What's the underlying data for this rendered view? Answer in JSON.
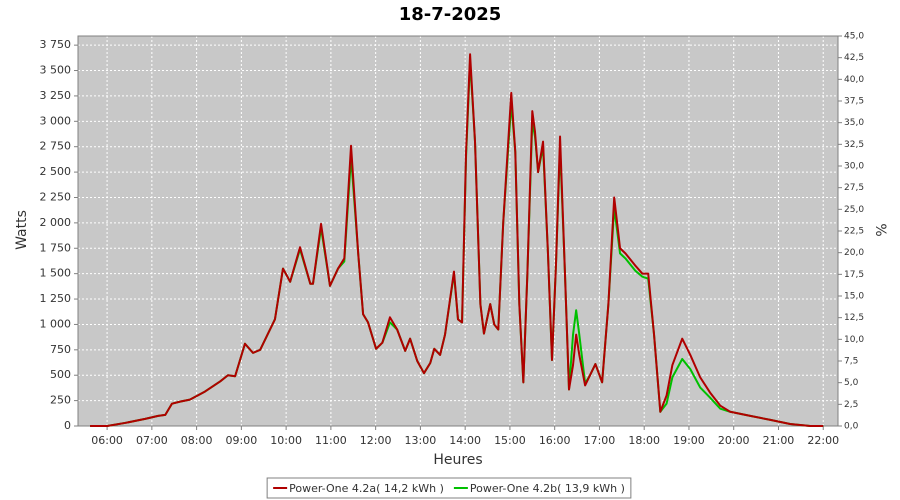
{
  "chart_data": {
    "type": "line",
    "title": "18-7-2025",
    "xlabel": "Heures",
    "ylabel": "Watts",
    "y2label": "%",
    "x": [
      5.62,
      6.0,
      6.4,
      6.85,
      7.14,
      7.3,
      7.45,
      7.63,
      7.85,
      8.19,
      8.53,
      8.7,
      8.86,
      9.08,
      9.26,
      9.42,
      9.75,
      9.93,
      10.09,
      10.31,
      10.54,
      10.6,
      10.78,
      10.98,
      11.16,
      11.3,
      11.45,
      11.61,
      11.72,
      11.83,
      12.01,
      12.15,
      12.32,
      12.48,
      12.66,
      12.77,
      12.93,
      13.08,
      13.22,
      13.31,
      13.44,
      13.55,
      13.75,
      13.84,
      13.93,
      14.02,
      14.11,
      14.22,
      14.34,
      14.42,
      14.56,
      14.65,
      14.74,
      14.85,
      15.03,
      15.12,
      15.21,
      15.3,
      15.39,
      15.5,
      15.56,
      15.63,
      15.74,
      15.85,
      15.94,
      16.03,
      16.12,
      16.23,
      16.32,
      16.41,
      16.48,
      16.55,
      16.68,
      16.79,
      16.91,
      17.06,
      17.2,
      17.33,
      17.46,
      17.58,
      17.8,
      17.96,
      18.09,
      18.22,
      18.36,
      18.5,
      18.63,
      18.85,
      19.03,
      19.25,
      19.47,
      19.7,
      19.92,
      20.37,
      20.82,
      21.26,
      21.71,
      22.0
    ],
    "series": [
      {
        "name": "Power-One 4.2a( 14,2 kWh )",
        "color": "#b00000",
        "values": [
          0,
          0,
          30,
          70,
          100,
          110,
          220,
          240,
          260,
          340,
          440,
          500,
          490,
          810,
          720,
          750,
          1050,
          1550,
          1420,
          1760,
          1400,
          1400,
          1990,
          1380,
          1550,
          1650,
          2760,
          1700,
          1100,
          1020,
          760,
          820,
          1070,
          950,
          740,
          860,
          640,
          520,
          620,
          760,
          700,
          900,
          1520,
          1050,
          1020,
          2700,
          3660,
          2800,
          1200,
          910,
          1200,
          1000,
          950,
          2000,
          3280,
          2700,
          1200,
          430,
          1500,
          3100,
          2900,
          2500,
          2800,
          1700,
          650,
          1600,
          2850,
          1500,
          360,
          600,
          900,
          700,
          400,
          500,
          610,
          430,
          1200,
          2250,
          1750,
          1700,
          1580,
          1500,
          1500,
          900,
          140,
          300,
          600,
          860,
          700,
          480,
          330,
          200,
          140,
          100,
          60,
          20,
          0,
          0
        ]
      },
      {
        "name": "Power-One 4.2b( 13,9 kWh )",
        "color": "#00c000",
        "values": [
          0,
          0,
          30,
          70,
          100,
          110,
          220,
          240,
          260,
          340,
          440,
          500,
          490,
          810,
          720,
          750,
          1050,
          1550,
          1420,
          1740,
          1400,
          1400,
          1950,
          1380,
          1550,
          1620,
          2650,
          1700,
          1100,
          1020,
          760,
          820,
          1020,
          950,
          740,
          860,
          640,
          520,
          620,
          760,
          700,
          900,
          1500,
          1050,
          1020,
          2650,
          3600,
          2800,
          1200,
          910,
          1200,
          1000,
          950,
          2000,
          3180,
          2700,
          1200,
          430,
          1500,
          3000,
          2850,
          2500,
          2750,
          1700,
          650,
          1600,
          2750,
          1500,
          360,
          900,
          1140,
          900,
          420,
          500,
          610,
          430,
          1200,
          2150,
          1700,
          1650,
          1530,
          1470,
          1450,
          900,
          140,
          220,
          480,
          660,
          560,
          380,
          280,
          170,
          140,
          100,
          60,
          20,
          0,
          0
        ]
      }
    ],
    "xlim": [
      5.35,
      22.33
    ],
    "xticks": [
      {
        "value": 6,
        "label": "06:00"
      },
      {
        "value": 7,
        "label": "07:00"
      },
      {
        "value": 8,
        "label": "08:00"
      },
      {
        "value": 9,
        "label": "09:00"
      },
      {
        "value": 10,
        "label": "10:00"
      },
      {
        "value": 11,
        "label": "11:00"
      },
      {
        "value": 12,
        "label": "12:00"
      },
      {
        "value": 13,
        "label": "13:00"
      },
      {
        "value": 14,
        "label": "14:00"
      },
      {
        "value": 15,
        "label": "15:00"
      },
      {
        "value": 16,
        "label": "16:00"
      },
      {
        "value": 17,
        "label": "17:00"
      },
      {
        "value": 18,
        "label": "18:00"
      },
      {
        "value": 19,
        "label": "19:00"
      },
      {
        "value": 20,
        "label": "20:00"
      },
      {
        "value": 21,
        "label": "21:00"
      },
      {
        "value": 22,
        "label": "22:00"
      }
    ],
    "ylim": [
      0,
      3840
    ],
    "yticks": [
      0,
      250,
      500,
      750,
      {
        "value": 1000,
        "label": "1 000"
      },
      {
        "value": 1250,
        "label": "1 250"
      },
      {
        "value": 1500,
        "label": "1 500"
      },
      {
        "value": 1750,
        "label": "1 750"
      },
      {
        "value": 2000,
        "label": "2 000"
      },
      {
        "value": 2250,
        "label": "2 250"
      },
      {
        "value": 2500,
        "label": "2 500"
      },
      {
        "value": 2750,
        "label": "2 750"
      },
      {
        "value": 3000,
        "label": "3 000"
      },
      {
        "value": 3250,
        "label": "3 250"
      },
      {
        "value": 3500,
        "label": "3 500"
      },
      {
        "value": 3750,
        "label": "3 750"
      }
    ],
    "y2lim": [
      0,
      45
    ],
    "y2ticks": [
      {
        "value": 0,
        "label": "0,0"
      },
      {
        "value": 2.5,
        "label": "2,5"
      },
      {
        "value": 5,
        "label": "5,0"
      },
      {
        "value": 7.5,
        "label": "7,5"
      },
      {
        "value": 10,
        "label": "10,0"
      },
      {
        "value": 12.5,
        "label": "12,5"
      },
      {
        "value": 15,
        "label": "15,0"
      },
      {
        "value": 17.5,
        "label": "17,5"
      },
      {
        "value": 20,
        "label": "20,0"
      },
      {
        "value": 22.5,
        "label": "22,5"
      },
      {
        "value": 25,
        "label": "25,0"
      },
      {
        "value": 27.5,
        "label": "27,5"
      },
      {
        "value": 30,
        "label": "30,0"
      },
      {
        "value": 32.5,
        "label": "32,5"
      },
      {
        "value": 35,
        "label": "35,0"
      },
      {
        "value": 37.5,
        "label": "37,5"
      },
      {
        "value": 40,
        "label": "40,0"
      },
      {
        "value": 42.5,
        "label": "42,5"
      },
      {
        "value": 45,
        "label": "45,0"
      }
    ],
    "grid": true,
    "plot_background": "#c8c8c8",
    "legend": "bottom"
  }
}
